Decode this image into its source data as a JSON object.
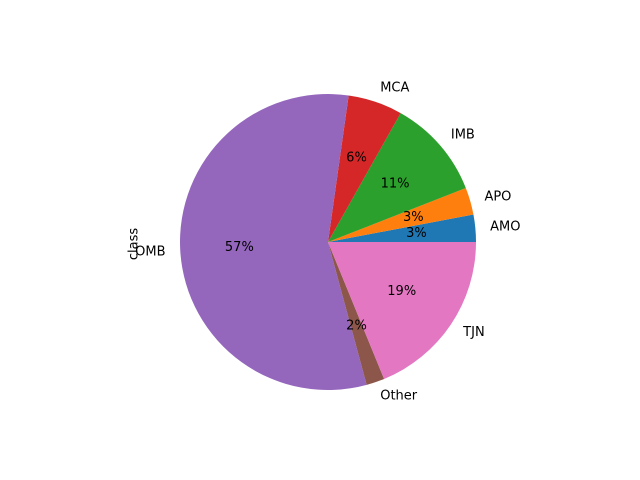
{
  "chart_data": {
    "type": "pie",
    "title": "",
    "ylabel": "class",
    "start_angle_deg": 0,
    "direction": "counterclockwise",
    "pct_format": "{p}%",
    "slices": [
      {
        "label": "AMO",
        "value": 3,
        "pct_label": "3%",
        "color": "#1f77b4"
      },
      {
        "label": "APO",
        "value": 3,
        "pct_label": "3%",
        "color": "#ff7f0e"
      },
      {
        "label": "IMB",
        "value": 11,
        "pct_label": "11%",
        "color": "#2ca02c"
      },
      {
        "label": "MCA",
        "value": 6,
        "pct_label": "6%",
        "color": "#d62728"
      },
      {
        "label": "OMB",
        "value": 57,
        "pct_label": "57%",
        "color": "#9467bd"
      },
      {
        "label": "Other",
        "value": 2,
        "pct_label": "2%",
        "color": "#8c564b"
      },
      {
        "label": "TJN",
        "value": 19,
        "pct_label": "19%",
        "color": "#e377c2"
      }
    ]
  }
}
